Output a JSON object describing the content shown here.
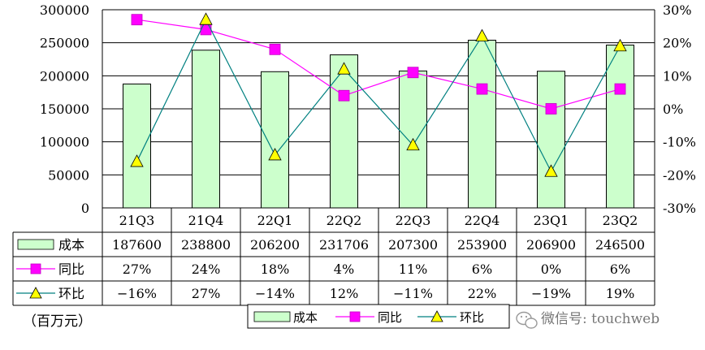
{
  "chart_data": {
    "type": "bar",
    "categories": [
      "21Q3",
      "21Q4",
      "22Q1",
      "22Q2",
      "22Q3",
      "22Q4",
      "23Q1",
      "23Q2"
    ],
    "series": [
      {
        "name": "成本",
        "type": "bar",
        "axis": "left",
        "values": [
          187600,
          238800,
          206200,
          231706,
          207300,
          253900,
          206900,
          246500
        ],
        "labels": [
          "187600",
          "238800",
          "206200",
          "231706",
          "207300",
          "253900",
          "206900",
          "246500"
        ],
        "color": "#ccffcc"
      },
      {
        "name": "同比",
        "type": "line",
        "axis": "right",
        "marker": "square",
        "values": [
          27,
          24,
          18,
          4,
          11,
          6,
          0,
          6
        ],
        "labels": [
          "27%",
          "24%",
          "18%",
          "4%",
          "11%",
          "6%",
          "0%",
          "6%"
        ],
        "color": "#ff00ff"
      },
      {
        "name": "环比",
        "type": "line",
        "axis": "right",
        "marker": "triangle",
        "values": [
          -16,
          27,
          -14,
          12,
          -11,
          22,
          -19,
          19
        ],
        "labels": [
          "−16%",
          "27%",
          "−14%",
          "12%",
          "−11%",
          "22%",
          "−19%",
          "19%"
        ],
        "color": "#008080",
        "marker_color": "#ffff00"
      }
    ],
    "y_left": {
      "min": 0,
      "max": 300000,
      "ticks": [
        "0",
        "50000",
        "100000",
        "150000",
        "200000",
        "250000",
        "300000"
      ]
    },
    "y_right": {
      "min": -30,
      "max": 30,
      "ticks": [
        "-30%",
        "-20%",
        "-10%",
        "0%",
        "10%",
        "20%",
        "30%"
      ]
    },
    "grid": true,
    "data_table": true,
    "unit_note": "（百万元）",
    "legend": {
      "position": "bottom",
      "entries": [
        "成本",
        "同比",
        "环比"
      ]
    }
  },
  "watermark": {
    "text": "微信号: touchweb",
    "icon": "wechat-icon"
  }
}
